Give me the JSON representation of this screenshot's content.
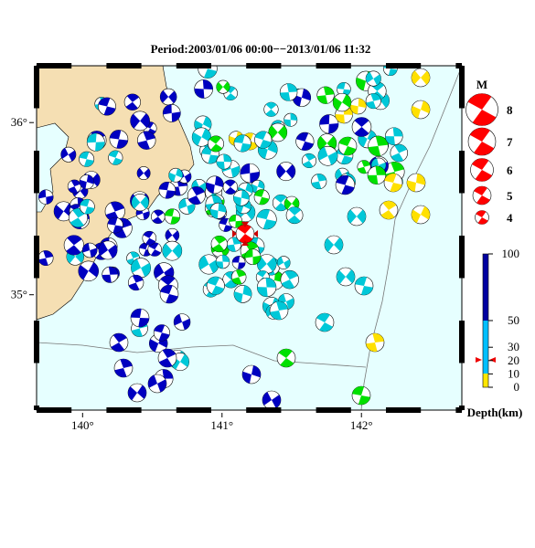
{
  "title": "Period:2003/01/06 00:00−−2013/01/06 11:32",
  "map": {
    "xlim": [
      139.67,
      142.72
    ],
    "ylim": [
      34.33,
      36.33
    ],
    "xticks": [
      {
        "value": 140,
        "label": "140°"
      },
      {
        "value": 141,
        "label": "141°"
      },
      {
        "value": 142,
        "label": "142°"
      }
    ],
    "yticks": [
      {
        "value": 35,
        "label": "35°"
      },
      {
        "value": 36,
        "label": "36°"
      }
    ]
  },
  "magnitude_legend": {
    "title": "M",
    "labels": [
      8,
      7,
      6,
      5,
      4
    ]
  },
  "depth_scale": {
    "ylim": [
      0,
      100
    ],
    "ticks": [
      100,
      50,
      30,
      20,
      10,
      0
    ],
    "label": "Depth(km)"
  }
}
